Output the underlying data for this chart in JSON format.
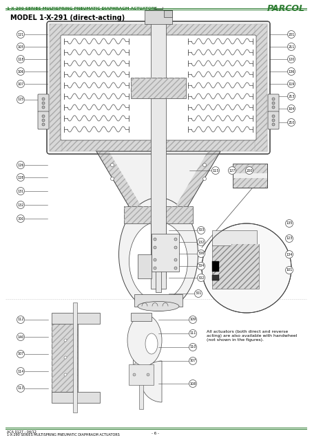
{
  "bg_color": "#ffffff",
  "header_text": "1-X-290 SERIES MULTISPRING PNEUMATIC DIAPHRAGM ACTUATORS",
  "header_color": "#2e7d32",
  "brand_text": "PARCOL",
  "brand_color": "#2e7d32",
  "title_text": "MODEL 1-X-291 (direct-acting)",
  "footer_line1": "ACA 0127 - 04/12",
  "footer_line2": "1-X-290 SERIES MULTISPRING PNEUMATIC DIAPHRAGM ACTUATORS",
  "footer_center": "- 6 -",
  "lc": "#444444",
  "lc_thin": "#666666",
  "hatch_fc": "#d8d8d8",
  "body_fc": "#f2f2f2",
  "stem_fc": "#e8e8e8",
  "note_text": "All actuators (both direct and reverse\nacting) are also available with handwheel\n(not shown in the figures)."
}
